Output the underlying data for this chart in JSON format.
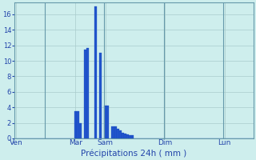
{
  "title": "",
  "xlabel": "Précipitations 24h ( mm )",
  "ylabel": "",
  "background_color": "#ceeeed",
  "bar_color": "#2255cc",
  "bar_edge_color": "#1144bb",
  "ylim": [
    0,
    17.5
  ],
  "yticks": [
    0,
    2,
    4,
    6,
    8,
    10,
    12,
    14,
    16
  ],
  "grid_color": "#aacccc",
  "tick_label_color": "#2244aa",
  "xlabel_color": "#2244aa",
  "day_labels": [
    "Ven",
    "Mar",
    "Sam",
    "Dim",
    "Lun"
  ],
  "day_positions": [
    0,
    24,
    36,
    60,
    84
  ],
  "num_bars": 96,
  "values": [
    0,
    0,
    0,
    0,
    0,
    0,
    0,
    0,
    0,
    0,
    0,
    0,
    0,
    0,
    0,
    0,
    0,
    0,
    0,
    0,
    0,
    0,
    0,
    0,
    3.5,
    3.5,
    2.0,
    0,
    11.5,
    11.7,
    0,
    0,
    17.0,
    0,
    11.0,
    0,
    4.2,
    4.2,
    0,
    1.5,
    1.5,
    1.2,
    1.0,
    0.7,
    0.6,
    0.5,
    0.4,
    0.4,
    0,
    0,
    0,
    0,
    0,
    0,
    0,
    0,
    0,
    0,
    0,
    0,
    0,
    0,
    0,
    0,
    0,
    0,
    0,
    0,
    0,
    0,
    0,
    0,
    0,
    0,
    0,
    0,
    0,
    0,
    0,
    0,
    0,
    0,
    0,
    0,
    0,
    0,
    0,
    0,
    0,
    0,
    0,
    0,
    0,
    0,
    0,
    0
  ],
  "vline_positions": [
    12,
    36,
    60,
    84
  ],
  "vline_color": "#6699aa",
  "spine_color": "#6699aa"
}
